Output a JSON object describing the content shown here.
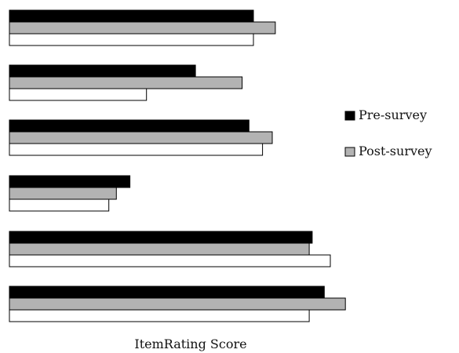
{
  "chart_data": {
    "type": "bar",
    "orientation": "horizontal",
    "grid": false,
    "legend_placement": "right",
    "xlabel": "ItemRating Score",
    "ylabel": "",
    "title": "",
    "categories": [
      "",
      "",
      "",
      "",
      "",
      ""
    ],
    "series": [
      {
        "name": "Pre-survey",
        "color": "#000000",
        "values": [
          3.24,
          2.47,
          3.18,
          1.6,
          4.02,
          4.18
        ]
      },
      {
        "name": "Post-survey",
        "color": "#b3b3b3",
        "values": [
          3.53,
          3.09,
          3.49,
          1.42,
          3.98,
          4.46
        ]
      },
      {
        "color": "#ffffff",
        "values": [
          3.24,
          1.82,
          3.36,
          1.32,
          4.26,
          3.98
        ]
      }
    ],
    "xlim": [
      0,
      5
    ]
  }
}
